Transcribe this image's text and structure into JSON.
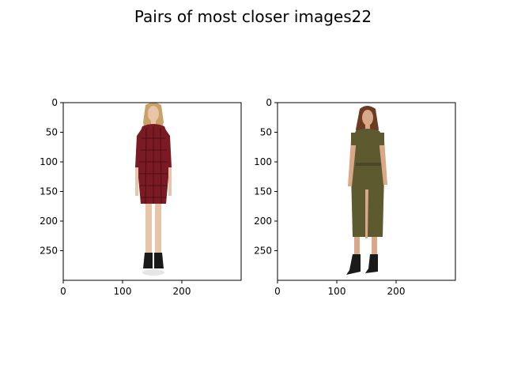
{
  "figure": {
    "title": "Pairs of most closer images22"
  },
  "panels": [
    {
      "name": "left-image",
      "description_icon": "woman-red-plaid-shirt-dress-photo",
      "x_ticks": [
        "0",
        "100",
        "200"
      ],
      "y_ticks": [
        "0",
        "50",
        "100",
        "150",
        "200",
        "250"
      ]
    },
    {
      "name": "right-image",
      "description_icon": "woman-olive-shirt-dress-photo",
      "x_ticks": [
        "0",
        "100",
        "200"
      ],
      "y_ticks": [
        "0",
        "50",
        "100",
        "150",
        "200",
        "250"
      ]
    }
  ],
  "colors": {
    "plaid_red": "#7a1a22",
    "plaid_dark": "#3a0a10",
    "olive": "#5c5a2e",
    "skin": "#e8c4a8",
    "hair_blonde": "#c9a26a",
    "hair_brown": "#6b3b22",
    "boot_black": "#1a1a1a"
  }
}
